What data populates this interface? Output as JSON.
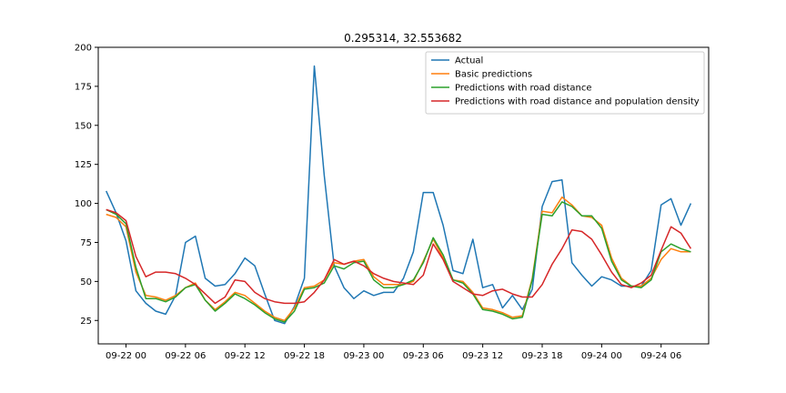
{
  "chart_data": {
    "type": "line",
    "title": "0.295314, 32.553682",
    "xlabel": "",
    "ylabel": "",
    "x_tick_labels": [
      "09-22 00",
      "09-22 06",
      "09-22 12",
      "09-22 18",
      "09-23 00",
      "09-23 06",
      "09-23 12",
      "09-23 18",
      "09-24 00",
      "09-24 06"
    ],
    "x_tick_hours": [
      0,
      6,
      12,
      18,
      24,
      30,
      36,
      42,
      48,
      54
    ],
    "y_ticks": [
      25,
      50,
      75,
      100,
      125,
      150,
      175,
      200
    ],
    "xlim": [
      -2.8,
      58.8
    ],
    "ylim": [
      10,
      200
    ],
    "legend_position": "upper-right",
    "grid": false,
    "x_hours": [
      -2,
      -1,
      0,
      1,
      2,
      3,
      4,
      5,
      6,
      7,
      8,
      9,
      10,
      11,
      12,
      13,
      14,
      15,
      16,
      17,
      18,
      19,
      20,
      21,
      22,
      23,
      24,
      25,
      26,
      27,
      28,
      29,
      30,
      31,
      32,
      33,
      34,
      35,
      36,
      37,
      38,
      39,
      40,
      41,
      42,
      43,
      44,
      45,
      46,
      47,
      48,
      49,
      50,
      51,
      52,
      53,
      54,
      55,
      56,
      57
    ],
    "series": [
      {
        "name": "Actual",
        "color": "#1f77b4",
        "values": [
          108,
          94,
          76,
          44,
          36,
          31,
          29,
          41,
          75,
          79,
          52,
          47,
          48,
          55,
          65,
          60,
          42,
          25,
          23,
          34,
          52,
          188,
          118,
          60,
          46,
          39,
          44,
          41,
          43,
          43,
          52,
          69,
          107,
          107,
          86,
          57,
          55,
          77,
          46,
          48,
          33,
          41,
          32,
          45,
          98,
          114,
          115,
          62,
          54,
          47,
          53,
          51,
          47,
          47,
          47,
          57,
          99,
          103,
          86,
          100
        ]
      },
      {
        "name": "Basic predictions",
        "color": "#ff7f0e",
        "values": [
          93,
          91,
          85,
          56,
          41,
          40,
          38,
          41,
          46,
          49,
          38,
          32,
          37,
          43,
          41,
          36,
          31,
          27,
          25,
          33,
          46,
          47,
          51,
          62,
          61,
          63,
          64,
          53,
          48,
          48,
          48,
          50,
          63,
          77,
          65,
          51,
          50,
          43,
          33,
          32,
          30,
          27,
          28,
          52,
          95,
          94,
          104,
          99,
          92,
          91,
          86,
          65,
          52,
          47,
          47,
          52,
          64,
          71,
          69,
          69
        ]
      },
      {
        "name": "Predictions with road distance",
        "color": "#2ca02c",
        "values": [
          96,
          93,
          87,
          59,
          39,
          39,
          37,
          40,
          46,
          48,
          38,
          31,
          36,
          42,
          39,
          35,
          30,
          26,
          24,
          31,
          45,
          46,
          49,
          60,
          58,
          62,
          63,
          51,
          46,
          46,
          48,
          51,
          62,
          78,
          67,
          51,
          49,
          42,
          32,
          31,
          29,
          26,
          27,
          51,
          93,
          92,
          101,
          98,
          92,
          92,
          84,
          63,
          51,
          47,
          46,
          51,
          69,
          74,
          71,
          69
        ]
      },
      {
        "name": "Predictions with road distance and population density",
        "color": "#d62728",
        "values": [
          96,
          94,
          89,
          66,
          53,
          56,
          56,
          55,
          52,
          48,
          42,
          36,
          40,
          51,
          50,
          43,
          39,
          37,
          36,
          36,
          37,
          43,
          51,
          64,
          61,
          63,
          60,
          55,
          52,
          50,
          49,
          48,
          54,
          74,
          64,
          50,
          46,
          42,
          41,
          44,
          45,
          42,
          40,
          40,
          48,
          61,
          71,
          83,
          82,
          77,
          67,
          56,
          48,
          46,
          49,
          54,
          70,
          85,
          81,
          71
        ]
      }
    ]
  }
}
